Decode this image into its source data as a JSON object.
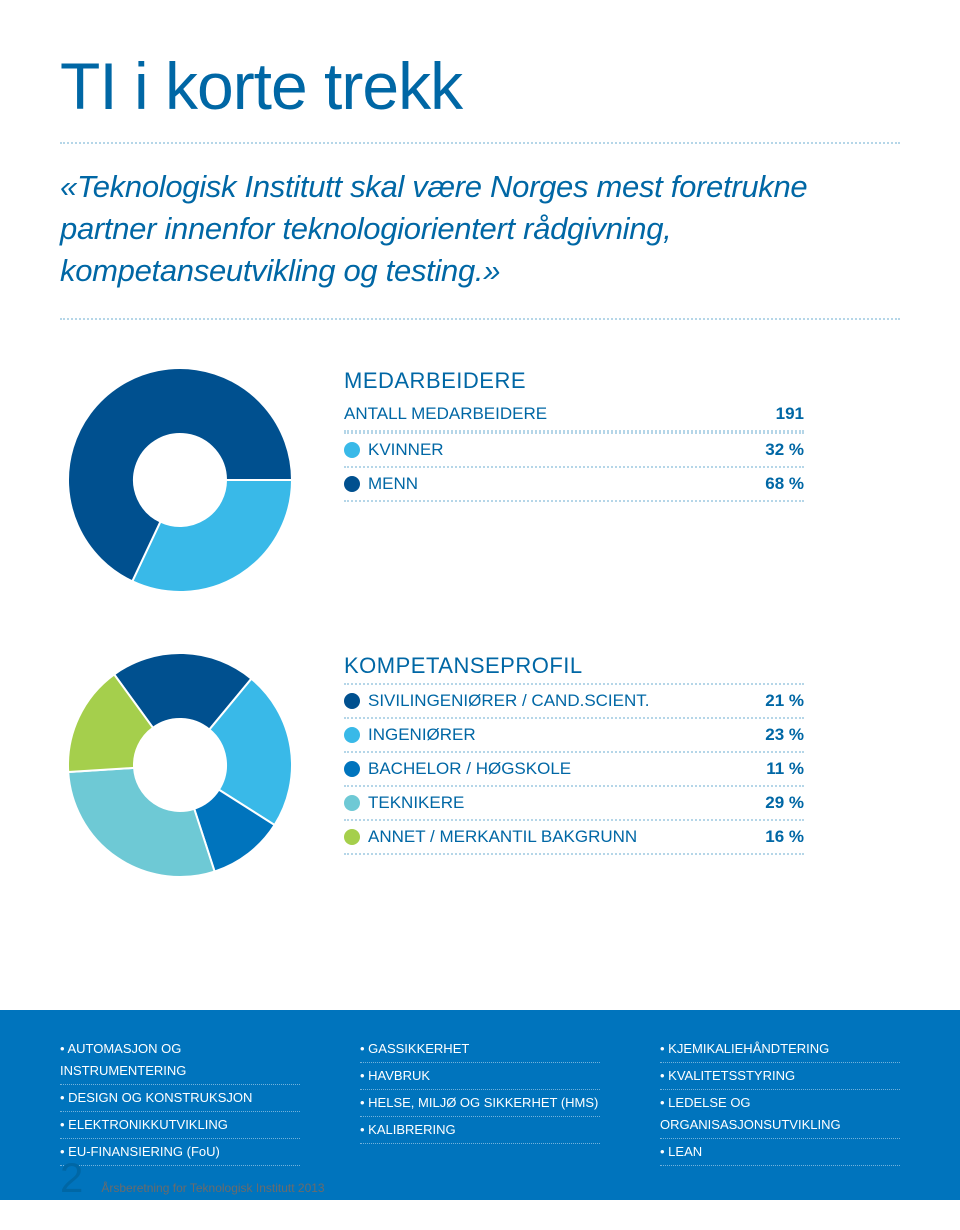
{
  "page": {
    "title": "TI i korte trekk",
    "quote": "«Teknologisk Institutt skal være Norges mest foretrukne partner innenfor teknologiorientert rådgivning, kompetanseutvikling og testing.»",
    "number": "2",
    "footer": "Årsberetning for Teknologisk Institutt 2013"
  },
  "colors": {
    "brand_text": "#0067a5",
    "band_bg": "#0074bd",
    "dotted": "#b5d6e8"
  },
  "medarbeidere": {
    "title": "MEDARBEIDERE",
    "total_label": "ANTALL MEDARBEIDERE",
    "total_value": "191",
    "rows": [
      {
        "label": "KVINNER",
        "value": "32 %",
        "color": "#39b9e8",
        "pct": 32
      },
      {
        "label": "MENN",
        "value": "68 %",
        "color": "#00508f",
        "pct": 68
      }
    ],
    "donut": {
      "inner_r": 46,
      "outer_r": 112,
      "size": 240,
      "start_angle_deg": 0,
      "bg": "#ffffff"
    }
  },
  "kompetanse": {
    "title": "KOMPETANSEPROFIL",
    "rows": [
      {
        "label": "SIVILINGENIØRER / CAND.SCIENT.",
        "value": "21 %",
        "color": "#00508f",
        "pct": 21
      },
      {
        "label": "INGENIØRER",
        "value": "23 %",
        "color": "#39b9e8",
        "pct": 23
      },
      {
        "label": "BACHELOR / HØGSKOLE",
        "value": "11 %",
        "color": "#0074bd",
        "pct": 11
      },
      {
        "label": "TEKNIKERE",
        "value": "29 %",
        "color": "#6ec9d5",
        "pct": 29
      },
      {
        "label": "ANNET / MERKANTIL BAKGRUNN",
        "value": "16 %",
        "color": "#a5cf4c",
        "pct": 16
      }
    ],
    "donut": {
      "inner_r": 46,
      "outer_r": 112,
      "size": 240,
      "start_angle_deg": -126,
      "bg": "#ffffff"
    }
  },
  "band": {
    "cols": [
      [
        "AUTOMASJON OG INSTRUMENTERING",
        "DESIGN OG KONSTRUKSJON",
        "ELEKTRONIKKUTVIKLING",
        "EU-FINANSIERING (FoU)"
      ],
      [
        "GASSIKKERHET",
        "HAVBRUK",
        "HELSE, MILJØ OG SIKKERHET (HMS)",
        "KALIBRERING"
      ],
      [
        "KJEMIKALIEHÅNDTERING",
        "KVALITETSSTYRING",
        "LEDELSE OG ORGANISASJONSUTVIKLING",
        "LEAN"
      ]
    ]
  }
}
